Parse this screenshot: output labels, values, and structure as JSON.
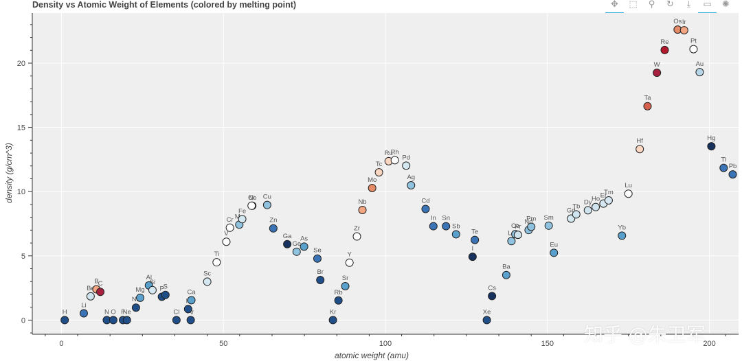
{
  "chart_data": {
    "type": "scatter",
    "title": "Density vs Atomic Weight of Elements (colored by melting point)",
    "xlabel": "atomic weight (amu)",
    "ylabel": "density (g/cm^3)",
    "xlim": [
      -9,
      209
    ],
    "ylim": [
      -1.1,
      23.9
    ],
    "xticks": [
      0,
      50,
      100,
      150,
      200
    ],
    "yticks": [
      0,
      5,
      10,
      15,
      20
    ],
    "grid": true,
    "points": [
      {
        "label": "H",
        "x": 1,
        "y": 0,
        "color": "#1f4e89"
      },
      {
        "label": "Li",
        "x": 6.9,
        "y": 0.53,
        "color": "#3a73b6"
      },
      {
        "label": "Be",
        "x": 9,
        "y": 1.85,
        "color": "#cfe4ee"
      },
      {
        "label": "B",
        "x": 10.8,
        "y": 2.4,
        "color": "#f4a582"
      },
      {
        "label": "C",
        "x": 12,
        "y": 2.2,
        "color": "#a7213f"
      },
      {
        "label": "N",
        "x": 14,
        "y": 0,
        "color": "#1f4e89"
      },
      {
        "label": "O",
        "x": 16,
        "y": 0,
        "color": "#1f4e89"
      },
      {
        "label": "F",
        "x": 19,
        "y": 0,
        "color": "#1f4e89"
      },
      {
        "label": "Ne",
        "x": 20.2,
        "y": 0,
        "color": "#1f4e89"
      },
      {
        "label": "Na",
        "x": 23,
        "y": 0.97,
        "color": "#1f4e89"
      },
      {
        "label": "Mg",
        "x": 24.3,
        "y": 1.74,
        "color": "#5aa0cc"
      },
      {
        "label": "Al",
        "x": 27,
        "y": 2.7,
        "color": "#5aa0cc"
      },
      {
        "label": "Si",
        "x": 28.1,
        "y": 2.33,
        "color": "#d5e7f0"
      },
      {
        "label": "P",
        "x": 31,
        "y": 1.82,
        "color": "#1f4e89"
      },
      {
        "label": "S",
        "x": 32.1,
        "y": 1.96,
        "color": "#1f4e89"
      },
      {
        "label": "Cl",
        "x": 35.5,
        "y": 0,
        "color": "#1f4e89"
      },
      {
        "label": "K",
        "x": 39.1,
        "y": 0.86,
        "color": "#1f4e89"
      },
      {
        "label": "Ar",
        "x": 39.9,
        "y": 0,
        "color": "#1f4e89"
      },
      {
        "label": "Ca",
        "x": 40.1,
        "y": 1.55,
        "color": "#5aa0cc"
      },
      {
        "label": "Sc",
        "x": 45,
        "y": 2.99,
        "color": "#d5e7f0"
      },
      {
        "label": "Ti",
        "x": 47.9,
        "y": 4.5,
        "color": "#ffffff"
      },
      {
        "label": "V",
        "x": 50.9,
        "y": 6.1,
        "color": "#ffffff"
      },
      {
        "label": "Cr",
        "x": 52,
        "y": 7.19,
        "color": "#ffffff"
      },
      {
        "label": "Mn",
        "x": 54.9,
        "y": 7.43,
        "color": "#8fc2de"
      },
      {
        "label": "Fe",
        "x": 55.8,
        "y": 7.86,
        "color": "#d5e7f0"
      },
      {
        "label": "Co",
        "x": 58.9,
        "y": 8.9,
        "color": "#d5e7f0"
      },
      {
        "label": "Ni",
        "x": 58.7,
        "y": 8.9,
        "color": "#ffffff"
      },
      {
        "label": "Cu",
        "x": 63.5,
        "y": 8.96,
        "color": "#8fc2de"
      },
      {
        "label": "Zn",
        "x": 65.4,
        "y": 7.14,
        "color": "#3a73b6"
      },
      {
        "label": "Ga",
        "x": 69.7,
        "y": 5.91,
        "color": "#17325f"
      },
      {
        "label": "Ge",
        "x": 72.6,
        "y": 5.32,
        "color": "#8fc2de"
      },
      {
        "label": "As",
        "x": 74.9,
        "y": 5.72,
        "color": "#5aa0cc"
      },
      {
        "label": "Se",
        "x": 79,
        "y": 4.79,
        "color": "#3a73b6"
      },
      {
        "label": "Br",
        "x": 79.9,
        "y": 3.12,
        "color": "#1f4e89"
      },
      {
        "label": "Kr",
        "x": 83.8,
        "y": 0,
        "color": "#1f4e89"
      },
      {
        "label": "Rb",
        "x": 85.5,
        "y": 1.53,
        "color": "#1f4e89"
      },
      {
        "label": "Sr",
        "x": 87.6,
        "y": 2.64,
        "color": "#5aa0cc"
      },
      {
        "label": "Y",
        "x": 88.9,
        "y": 4.47,
        "color": "#ffffff"
      },
      {
        "label": "Zr",
        "x": 91.2,
        "y": 6.51,
        "color": "#ffffff"
      },
      {
        "label": "Nb",
        "x": 92.9,
        "y": 8.57,
        "color": "#f4a582"
      },
      {
        "label": "Mo",
        "x": 95.9,
        "y": 10.28,
        "color": "#e58a66"
      },
      {
        "label": "Tc",
        "x": 98,
        "y": 11.5,
        "color": "#fbd7c2"
      },
      {
        "label": "Ru",
        "x": 101,
        "y": 12.37,
        "color": "#fbd7c2"
      },
      {
        "label": "Rh",
        "x": 102.9,
        "y": 12.45,
        "color": "#ffffff"
      },
      {
        "label": "Pd",
        "x": 106.4,
        "y": 12.02,
        "color": "#d5e7f0"
      },
      {
        "label": "Ag",
        "x": 107.9,
        "y": 10.49,
        "color": "#8fc2de"
      },
      {
        "label": "Cd",
        "x": 112.4,
        "y": 8.65,
        "color": "#3a73b6"
      },
      {
        "label": "In",
        "x": 114.8,
        "y": 7.31,
        "color": "#3a73b6"
      },
      {
        "label": "Sn",
        "x": 118.7,
        "y": 7.31,
        "color": "#3a73b6"
      },
      {
        "label": "Sb",
        "x": 121.8,
        "y": 6.68,
        "color": "#5aa0cc"
      },
      {
        "label": "Te",
        "x": 127.6,
        "y": 6.24,
        "color": "#3a73b6"
      },
      {
        "label": "I",
        "x": 126.9,
        "y": 4.93,
        "color": "#17325f"
      },
      {
        "label": "Xe",
        "x": 131.3,
        "y": 0,
        "color": "#1f4e89"
      },
      {
        "label": "Cs",
        "x": 132.9,
        "y": 1.87,
        "color": "#17325f"
      },
      {
        "label": "Ba",
        "x": 137.3,
        "y": 3.51,
        "color": "#5aa0cc"
      },
      {
        "label": "La",
        "x": 138.9,
        "y": 6.15,
        "color": "#8fc2de"
      },
      {
        "label": "Ce",
        "x": 140.1,
        "y": 6.69,
        "color": "#8fc2de"
      },
      {
        "label": "Pr",
        "x": 140.9,
        "y": 6.64,
        "color": "#cfe4ee"
      },
      {
        "label": "Nd",
        "x": 144.2,
        "y": 7.01,
        "color": "#8fc2de"
      },
      {
        "label": "Pm",
        "x": 145,
        "y": 7.26,
        "color": "#8fc2de"
      },
      {
        "label": "Sm",
        "x": 150.4,
        "y": 7.35,
        "color": "#8fc2de"
      },
      {
        "label": "Eu",
        "x": 152,
        "y": 5.24,
        "color": "#5aa0cc"
      },
      {
        "label": "Gd",
        "x": 157.3,
        "y": 7.9,
        "color": "#d5e7f0"
      },
      {
        "label": "Tb",
        "x": 158.9,
        "y": 8.23,
        "color": "#cfe4ee"
      },
      {
        "label": "Dy",
        "x": 162.5,
        "y": 8.55,
        "color": "#cfe4ee"
      },
      {
        "label": "Ho",
        "x": 164.9,
        "y": 8.8,
        "color": "#cfe4ee"
      },
      {
        "label": "Er",
        "x": 167.3,
        "y": 9.07,
        "color": "#d5e7f0"
      },
      {
        "label": "Tm",
        "x": 168.9,
        "y": 9.32,
        "color": "#d5e7f0"
      },
      {
        "label": "Yb",
        "x": 173,
        "y": 6.57,
        "color": "#5aa0cc"
      },
      {
        "label": "Lu",
        "x": 175,
        "y": 9.84,
        "color": "#ffffff"
      },
      {
        "label": "Hf",
        "x": 178.5,
        "y": 13.31,
        "color": "#fbd7c2"
      },
      {
        "label": "Ta",
        "x": 180.9,
        "y": 16.65,
        "color": "#d6604d"
      },
      {
        "label": "W",
        "x": 183.8,
        "y": 19.25,
        "color": "#a7213f"
      },
      {
        "label": "Re",
        "x": 186.2,
        "y": 21.02,
        "color": "#b2182b"
      },
      {
        "label": "Os",
        "x": 190.2,
        "y": 22.61,
        "color": "#e58a66"
      },
      {
        "label": "Ir",
        "x": 192.2,
        "y": 22.56,
        "color": "#f4a582"
      },
      {
        "label": "Pt",
        "x": 195.1,
        "y": 21.09,
        "color": "#ffffff"
      },
      {
        "label": "Au",
        "x": 197,
        "y": 19.3,
        "color": "#b7d7e8"
      },
      {
        "label": "Hg",
        "x": 200.6,
        "y": 13.53,
        "color": "#17325f"
      },
      {
        "label": "Tl",
        "x": 204.4,
        "y": 11.85,
        "color": "#3a73b6"
      },
      {
        "label": "Pb",
        "x": 207.2,
        "y": 11.34,
        "color": "#3a73b6"
      }
    ]
  },
  "toolbar": {
    "tools": [
      {
        "name": "pan-tool-icon",
        "glyph": "✥",
        "active": true
      },
      {
        "name": "box-zoom-tool-icon",
        "glyph": "⬚",
        "active": false
      },
      {
        "name": "wheel-zoom-tool-icon",
        "glyph": "⚲",
        "active": false
      },
      {
        "name": "reset-tool-icon",
        "glyph": "↻",
        "active": false
      },
      {
        "name": "save-tool-icon",
        "glyph": "⤓",
        "active": false
      },
      {
        "name": "hover-tool-icon",
        "glyph": "▭",
        "active": true
      },
      {
        "name": "bokeh-logo-icon",
        "glyph": "✺",
        "active": false
      }
    ]
  },
  "watermark": "知乎 @朱卫军"
}
